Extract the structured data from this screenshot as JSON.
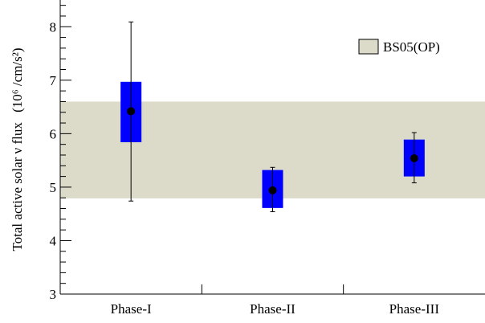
{
  "chart_data": {
    "type": "scatter",
    "title": "",
    "xlabel": "",
    "ylabel_main": "Total active solar ν flux",
    "ylabel_unit": "(10⁶ /cm/s²)",
    "categories": [
      "Phase-I",
      "Phase-II",
      "Phase-III"
    ],
    "ylim": [
      3,
      8.5
    ],
    "yticks": [
      3,
      4,
      5,
      6,
      7,
      8
    ],
    "grid": false,
    "series": [
      {
        "values": [
          6.42,
          4.94,
          5.54
        ],
        "stat_err_low": [
          4.74,
          4.54,
          5.08
        ],
        "stat_err_high": [
          8.09,
          5.37,
          6.02
        ],
        "sys_err_low": [
          5.84,
          4.61,
          5.2
        ],
        "sys_err_high": [
          6.97,
          5.32,
          5.89
        ],
        "box_color": "#0000ff",
        "marker_color": "#000000"
      }
    ],
    "bands": [
      {
        "name": "BS05(OP)",
        "low": 4.79,
        "high": 6.6,
        "color": "#dcdac8"
      }
    ],
    "legend": {
      "position": "top-right",
      "entries": [
        "BS05(OP)"
      ]
    }
  }
}
